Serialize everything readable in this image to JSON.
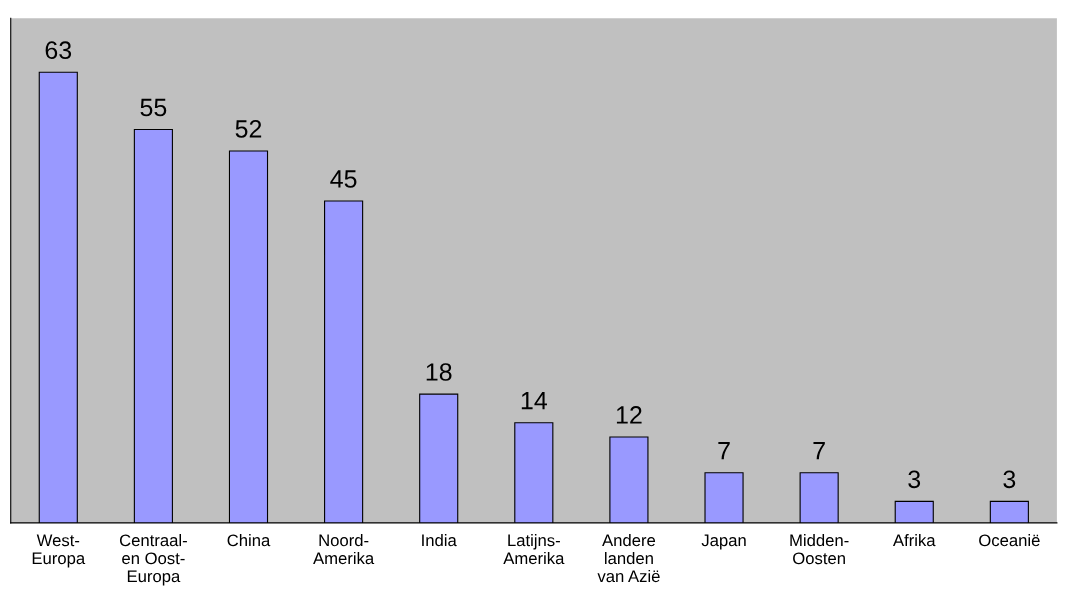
{
  "chart_data": {
    "type": "bar",
    "categories": [
      "West-\nEuropa",
      "Centraal-\nen Oost-\nEuropa",
      "China",
      "Noord-\nAmerika",
      "India",
      "Latijns-\nAmerika",
      "Andere\nlanden\nvan Azië",
      "Japan",
      "Midden-\nOosten",
      "Afrika",
      "Oceanië"
    ],
    "values": [
      63,
      55,
      52,
      45,
      18,
      14,
      12,
      7,
      7,
      3,
      3
    ],
    "color": "#9999ff",
    "data_labels": true,
    "tick_labels": "x"
  }
}
